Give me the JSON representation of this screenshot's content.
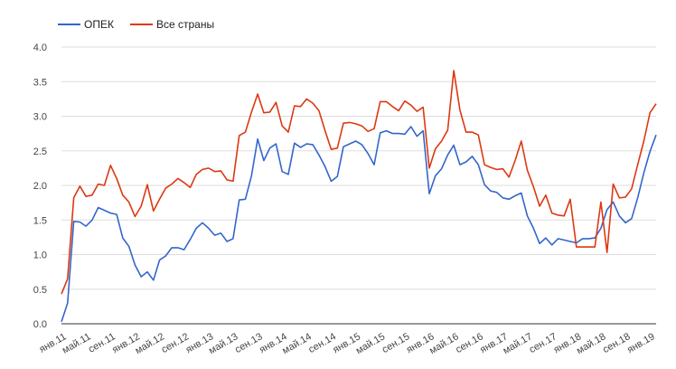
{
  "chart_data": {
    "type": "line",
    "title": "",
    "xlabel": "",
    "ylabel": "",
    "ylim": [
      0,
      4
    ],
    "grid": true,
    "legend_position": "top-left",
    "y_ticks": [
      "0.0",
      "0.5",
      "1.0",
      "1.5",
      "2.0",
      "2.5",
      "3.0",
      "3.5",
      "4.0"
    ],
    "x_tick_labels": [
      {
        "label": "янв.11",
        "index": 0
      },
      {
        "label": "май.11",
        "index": 4
      },
      {
        "label": "сен.11",
        "index": 8
      },
      {
        "label": "янв.12",
        "index": 12
      },
      {
        "label": "май.12",
        "index": 16
      },
      {
        "label": "сен.12",
        "index": 20
      },
      {
        "label": "янв.13",
        "index": 24
      },
      {
        "label": "май.13",
        "index": 28
      },
      {
        "label": "сен.13",
        "index": 32
      },
      {
        "label": "янв.14",
        "index": 36
      },
      {
        "label": "май.14",
        "index": 40
      },
      {
        "label": "сен.14",
        "index": 44
      },
      {
        "label": "янв.15",
        "index": 48
      },
      {
        "label": "май.15",
        "index": 52
      },
      {
        "label": "сен.15",
        "index": 56
      },
      {
        "label": "янв.16",
        "index": 60
      },
      {
        "label": "май.16",
        "index": 64
      },
      {
        "label": "сен.16",
        "index": 68
      },
      {
        "label": "янв.17",
        "index": 72
      },
      {
        "label": "май.17",
        "index": 76
      },
      {
        "label": "сен.17",
        "index": 80
      },
      {
        "label": "янв.18",
        "index": 84
      },
      {
        "label": "май.18",
        "index": 88
      },
      {
        "label": "сен.18",
        "index": 92
      },
      {
        "label": "янв.19",
        "index": 96
      }
    ],
    "series": [
      {
        "name": "ОПЕК",
        "color": "#3366cc",
        "values": [
          0.03,
          0.3,
          1.48,
          1.47,
          1.41,
          1.5,
          1.68,
          1.64,
          1.6,
          1.58,
          1.24,
          1.12,
          0.85,
          0.68,
          0.75,
          0.63,
          0.92,
          0.98,
          1.1,
          1.1,
          1.07,
          1.22,
          1.38,
          1.46,
          1.38,
          1.28,
          1.31,
          1.19,
          1.23,
          1.79,
          1.8,
          2.14,
          2.67,
          2.36,
          2.54,
          2.6,
          2.2,
          2.16,
          2.61,
          2.55,
          2.6,
          2.59,
          2.44,
          2.27,
          2.06,
          2.13,
          2.56,
          2.6,
          2.64,
          2.59,
          2.46,
          2.3,
          2.76,
          2.79,
          2.75,
          2.75,
          2.74,
          2.85,
          2.71,
          2.79,
          1.88,
          2.14,
          2.24,
          2.44,
          2.58,
          2.3,
          2.34,
          2.42,
          2.3,
          2.01,
          1.92,
          1.9,
          1.82,
          1.8,
          1.85,
          1.89,
          1.56,
          1.38,
          1.16,
          1.24,
          1.14,
          1.23,
          1.21,
          1.19,
          1.17,
          1.23,
          1.23,
          1.24,
          1.38,
          1.65,
          1.76,
          1.56,
          1.46,
          1.52,
          1.82,
          2.18,
          2.49,
          2.73
        ]
      },
      {
        "name": "Все страны",
        "color": "#dc3912",
        "values": [
          0.43,
          0.65,
          1.82,
          1.99,
          1.84,
          1.86,
          2.02,
          2.0,
          2.29,
          2.1,
          1.86,
          1.76,
          1.55,
          1.7,
          2.01,
          1.63,
          1.8,
          1.96,
          2.02,
          2.1,
          2.04,
          1.97,
          2.16,
          2.23,
          2.25,
          2.2,
          2.21,
          2.08,
          2.06,
          2.72,
          2.77,
          3.06,
          3.32,
          3.05,
          3.06,
          3.2,
          2.86,
          2.77,
          3.15,
          3.14,
          3.25,
          3.19,
          3.08,
          2.79,
          2.52,
          2.54,
          2.9,
          2.91,
          2.89,
          2.86,
          2.78,
          2.82,
          3.21,
          3.21,
          3.14,
          3.08,
          3.22,
          3.16,
          3.07,
          3.13,
          2.25,
          2.53,
          2.64,
          2.8,
          3.66,
          3.09,
          2.77,
          2.77,
          2.73,
          2.3,
          2.26,
          2.23,
          2.24,
          2.12,
          2.36,
          2.64,
          2.22,
          1.98,
          1.7,
          1.86,
          1.6,
          1.57,
          1.56,
          1.8,
          1.11,
          1.11,
          1.11,
          1.11,
          1.76,
          1.03,
          2.02,
          1.82,
          1.83,
          1.95,
          2.3,
          2.64,
          3.05,
          3.18
        ]
      }
    ]
  }
}
